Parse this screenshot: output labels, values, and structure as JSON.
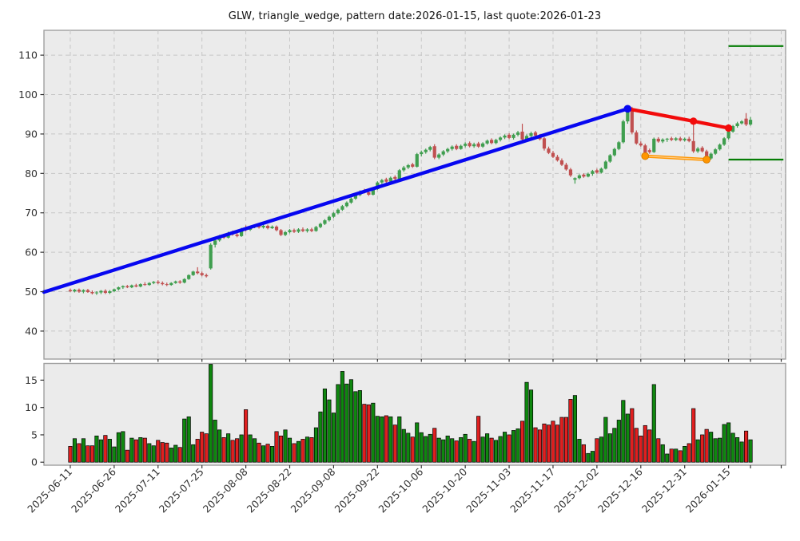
{
  "title": "GLW, triangle_wedge, pattern date:2026-01-15, last quote:2026-01-23",
  "chart_data": {
    "type": "candlestick",
    "symbol": "GLW",
    "pattern_name": "triangle_wedge",
    "pattern_date": "2026-01-15",
    "last_quote_date": "2026-01-23",
    "price_axis": {
      "ticks": [
        40,
        50,
        60,
        70,
        80,
        90,
        100,
        110
      ],
      "lim": [
        32.9,
        116.3
      ]
    },
    "volume_axis": {
      "ticks": [
        0,
        5,
        10,
        15
      ],
      "lim": [
        -0.55,
        18.05
      ]
    },
    "x_axis": {
      "lim": [
        -6,
        163
      ],
      "ticks": [
        {
          "i": 0,
          "label": "2025-06-11"
        },
        {
          "i": 10,
          "label": "2025-06-26"
        },
        {
          "i": 20,
          "label": "2025-07-11"
        },
        {
          "i": 30,
          "label": "2025-07-25"
        },
        {
          "i": 40,
          "label": "2025-08-08"
        },
        {
          "i": 50,
          "label": "2025-08-22"
        },
        {
          "i": 60,
          "label": "2025-09-08"
        },
        {
          "i": 70,
          "label": "2025-09-22"
        },
        {
          "i": 80,
          "label": "2025-10-06"
        },
        {
          "i": 90,
          "label": "2025-10-20"
        },
        {
          "i": 100,
          "label": "2025-11-03"
        },
        {
          "i": 110,
          "label": "2025-11-17"
        },
        {
          "i": 120,
          "label": "2025-12-02"
        },
        {
          "i": 130,
          "label": "2025-12-16"
        },
        {
          "i": 140,
          "label": "2025-12-31"
        },
        {
          "i": 150,
          "label": "2026-01-15"
        }
      ],
      "minor_unlabeled_ticks": [
        155,
        162
      ]
    },
    "candle_fields": [
      "open",
      "high",
      "low",
      "close",
      "volume"
    ],
    "candles": [
      [
        50.4,
        50.8,
        49.9,
        50.1,
        2.9
      ],
      [
        50.1,
        50.7,
        49.8,
        50.5,
        4.3
      ],
      [
        50.5,
        50.8,
        49.7,
        50.0,
        3.4
      ],
      [
        50.0,
        50.6,
        49.6,
        50.4,
        4.3
      ],
      [
        50.4,
        50.7,
        49.7,
        49.9,
        3.0
      ],
      [
        49.9,
        50.3,
        49.3,
        49.6,
        3.0
      ],
      [
        49.6,
        50.1,
        49.2,
        49.8,
        4.8
      ],
      [
        49.8,
        50.4,
        49.4,
        50.2,
        4.1
      ],
      [
        50.2,
        50.6,
        49.4,
        49.7,
        4.9
      ],
      [
        49.7,
        50.4,
        49.4,
        50.1,
        4.2
      ],
      [
        50.1,
        50.8,
        49.9,
        50.6,
        2.8
      ],
      [
        50.6,
        51.3,
        50.3,
        51.1,
        5.4
      ],
      [
        51.1,
        51.6,
        50.7,
        51.4,
        5.6
      ],
      [
        51.4,
        51.7,
        50.9,
        51.1,
        2.2
      ],
      [
        51.1,
        51.8,
        50.9,
        51.6,
        4.4
      ],
      [
        51.6,
        52.0,
        51.1,
        51.3,
        4.1
      ],
      [
        51.3,
        52.1,
        51.1,
        51.9,
        4.5
      ],
      [
        51.9,
        52.4,
        51.5,
        51.7,
        4.4
      ],
      [
        51.7,
        52.4,
        51.5,
        52.2,
        3.4
      ],
      [
        52.2,
        52.7,
        51.9,
        52.5,
        3.0
      ],
      [
        52.5,
        52.9,
        51.9,
        52.2,
        4.0
      ],
      [
        52.2,
        52.6,
        51.6,
        51.9,
        3.6
      ],
      [
        51.9,
        52.3,
        51.4,
        51.7,
        3.5
      ],
      [
        51.7,
        52.4,
        51.5,
        52.2,
        2.6
      ],
      [
        52.2,
        52.8,
        52.0,
        52.6,
        3.1
      ],
      [
        52.6,
        52.9,
        52.0,
        52.3,
        2.7
      ],
      [
        52.3,
        53.4,
        52.1,
        53.2,
        7.9
      ],
      [
        53.2,
        54.4,
        53.0,
        54.2,
        8.3
      ],
      [
        54.2,
        55.3,
        54.0,
        55.1,
        3.2
      ],
      [
        55.1,
        56.2,
        54.4,
        54.7,
        4.2
      ],
      [
        54.7,
        55.1,
        53.9,
        54.2,
        5.5
      ],
      [
        54.2,
        54.6,
        53.6,
        53.9,
        5.2
      ],
      [
        55.9,
        62.3,
        55.6,
        61.9,
        17.9
      ],
      [
        61.9,
        63.4,
        61.2,
        63.0,
        7.7
      ],
      [
        63.0,
        64.4,
        62.7,
        64.1,
        5.9
      ],
      [
        64.3,
        64.7,
        63.4,
        63.7,
        4.5
      ],
      [
        63.7,
        65.2,
        63.5,
        64.9,
        5.2
      ],
      [
        65.1,
        65.5,
        64.2,
        64.5,
        4.0
      ],
      [
        64.5,
        65.0,
        63.8,
        64.1,
        4.3
      ],
      [
        64.1,
        66.2,
        63.9,
        65.9,
        5.0
      ],
      [
        66.1,
        66.8,
        65.3,
        65.7,
        9.6
      ],
      [
        65.7,
        66.7,
        65.4,
        66.4,
        5.0
      ],
      [
        66.4,
        67.1,
        66.1,
        66.8,
        4.3
      ],
      [
        66.8,
        67.2,
        66.0,
        66.3,
        3.5
      ],
      [
        66.3,
        67.0,
        66.0,
        66.7,
        3.0
      ],
      [
        66.7,
        67.0,
        65.8,
        66.1,
        3.3
      ],
      [
        66.1,
        66.8,
        65.9,
        66.5,
        2.9
      ],
      [
        66.5,
        66.8,
        65.3,
        65.6,
        5.6
      ],
      [
        65.6,
        65.9,
        64.1,
        64.4,
        4.8
      ],
      [
        64.4,
        65.4,
        64.1,
        65.1,
        5.9
      ],
      [
        65.1,
        65.9,
        64.8,
        65.6,
        4.4
      ],
      [
        65.6,
        66.0,
        64.9,
        65.2,
        3.4
      ],
      [
        65.2,
        66.1,
        64.9,
        65.8,
        3.8
      ],
      [
        65.8,
        66.3,
        65.1,
        65.4,
        4.2
      ],
      [
        65.4,
        66.1,
        65.0,
        65.8,
        4.6
      ],
      [
        65.8,
        66.2,
        65.1,
        65.4,
        4.5
      ],
      [
        65.4,
        66.7,
        65.2,
        66.4,
        6.3
      ],
      [
        66.4,
        67.5,
        66.1,
        67.2,
        9.2
      ],
      [
        67.2,
        68.4,
        66.9,
        68.1,
        13.4
      ],
      [
        68.1,
        69.3,
        67.8,
        69.0,
        11.4
      ],
      [
        69.0,
        70.2,
        68.7,
        69.9,
        9.0
      ],
      [
        69.9,
        71.1,
        69.6,
        70.8,
        14.2
      ],
      [
        70.8,
        72.0,
        70.5,
        71.7,
        16.6
      ],
      [
        71.7,
        72.9,
        71.4,
        72.6,
        14.3
      ],
      [
        72.6,
        73.9,
        72.3,
        73.6,
        15.1
      ],
      [
        73.6,
        74.8,
        73.3,
        74.5,
        12.9
      ],
      [
        74.5,
        75.7,
        74.2,
        75.4,
        13.1
      ],
      [
        75.6,
        76.1,
        74.9,
        75.2,
        10.6
      ],
      [
        75.2,
        75.7,
        74.3,
        74.6,
        10.5
      ],
      [
        74.6,
        76.3,
        74.4,
        76.0,
        10.8
      ],
      [
        76.0,
        78.0,
        75.8,
        77.7,
        8.4
      ],
      [
        77.7,
        78.6,
        77.3,
        78.3,
        8.3
      ],
      [
        78.5,
        78.9,
        77.6,
        77.9,
        8.5
      ],
      [
        77.9,
        79.2,
        77.7,
        78.9,
        8.3
      ],
      [
        79.1,
        79.5,
        78.3,
        78.6,
        6.8
      ],
      [
        78.6,
        81.1,
        78.4,
        80.8,
        8.3
      ],
      [
        80.8,
        81.9,
        80.4,
        81.5,
        6.0
      ],
      [
        81.5,
        82.4,
        81.1,
        82.1,
        5.3
      ],
      [
        82.3,
        82.7,
        81.4,
        81.7,
        4.6
      ],
      [
        81.7,
        85.2,
        81.5,
        84.9,
        7.2
      ],
      [
        84.9,
        85.8,
        84.3,
        85.4,
        5.4
      ],
      [
        85.4,
        86.3,
        85.0,
        86.0,
        4.7
      ],
      [
        86.0,
        87.0,
        85.6,
        86.7,
        5.1
      ],
      [
        86.9,
        87.4,
        83.6,
        84.0,
        6.2
      ],
      [
        84.0,
        85.1,
        83.6,
        84.8,
        4.4
      ],
      [
        84.8,
        85.9,
        84.4,
        85.6,
        4.1
      ],
      [
        85.6,
        86.5,
        85.2,
        86.2,
        4.8
      ],
      [
        86.2,
        87.1,
        85.8,
        86.8,
        4.3
      ],
      [
        87.0,
        87.4,
        85.9,
        86.2,
        3.9
      ],
      [
        86.2,
        87.3,
        86.0,
        87.0,
        4.5
      ],
      [
        87.0,
        87.9,
        86.6,
        87.5,
        5.1
      ],
      [
        87.7,
        88.1,
        86.6,
        86.9,
        4.2
      ],
      [
        86.9,
        87.8,
        86.5,
        87.4,
        3.8
      ],
      [
        87.6,
        88.0,
        86.5,
        86.8,
        8.4
      ],
      [
        86.8,
        87.9,
        86.5,
        87.6,
        4.6
      ],
      [
        87.6,
        88.6,
        87.3,
        88.3,
        5.2
      ],
      [
        88.5,
        88.9,
        87.4,
        87.7,
        4.4
      ],
      [
        87.7,
        88.8,
        87.4,
        88.5,
        4.0
      ],
      [
        88.5,
        89.4,
        88.1,
        89.1,
        4.7
      ],
      [
        89.1,
        89.9,
        88.7,
        89.6,
        5.5
      ],
      [
        89.8,
        90.2,
        88.7,
        89.0,
        5.0
      ],
      [
        89.0,
        90.1,
        88.6,
        89.8,
        5.8
      ],
      [
        89.8,
        90.8,
        89.4,
        90.4,
        6.1
      ],
      [
        90.6,
        92.6,
        88.3,
        88.6,
        7.5
      ],
      [
        88.6,
        89.9,
        88.3,
        89.5,
        14.6
      ],
      [
        89.5,
        90.6,
        89.1,
        90.2,
        13.2
      ],
      [
        90.4,
        90.8,
        89.3,
        89.6,
        6.3
      ],
      [
        89.6,
        90.0,
        88.4,
        88.7,
        5.9
      ],
      [
        88.9,
        89.2,
        85.8,
        86.3,
        7.0
      ],
      [
        86.3,
        86.8,
        84.9,
        85.2,
        6.8
      ],
      [
        85.2,
        85.7,
        83.9,
        84.2,
        7.5
      ],
      [
        84.2,
        84.7,
        83.0,
        83.3,
        6.8
      ],
      [
        83.3,
        83.8,
        81.9,
        82.2,
        8.2
      ],
      [
        82.2,
        82.7,
        80.7,
        81.0,
        8.2
      ],
      [
        81.0,
        81.4,
        79.1,
        79.5,
        11.5
      ],
      [
        78.4,
        79.0,
        77.4,
        78.8,
        12.2
      ],
      [
        78.8,
        79.8,
        78.5,
        79.5,
        4.2
      ],
      [
        79.7,
        80.0,
        78.9,
        79.2,
        3.2
      ],
      [
        79.2,
        80.2,
        79.0,
        79.9,
        1.6
      ],
      [
        79.9,
        80.9,
        79.4,
        80.6,
        2.0
      ],
      [
        80.8,
        81.2,
        79.9,
        80.2,
        4.3
      ],
      [
        80.2,
        81.5,
        80.0,
        81.2,
        4.6
      ],
      [
        81.2,
        83.3,
        81.0,
        83.0,
        8.2
      ],
      [
        83.0,
        84.9,
        82.7,
        84.6,
        5.2
      ],
      [
        84.6,
        86.5,
        84.3,
        86.2,
        6.2
      ],
      [
        86.2,
        88.2,
        85.9,
        87.9,
        7.7
      ],
      [
        87.9,
        93.6,
        87.6,
        93.2,
        11.3
      ],
      [
        93.2,
        96.8,
        92.6,
        96.3,
        8.8
      ],
      [
        96.3,
        96.9,
        89.9,
        90.4,
        9.8
      ],
      [
        90.4,
        90.9,
        87.3,
        87.6,
        6.2
      ],
      [
        87.6,
        88.1,
        86.8,
        87.1,
        4.8
      ],
      [
        87.1,
        87.5,
        84.4,
        85.3,
        6.7
      ],
      [
        85.9,
        86.3,
        85.0,
        85.4,
        5.9
      ],
      [
        85.4,
        89.1,
        85.2,
        88.8,
        14.2
      ],
      [
        88.8,
        89.2,
        87.8,
        88.1,
        4.3
      ],
      [
        88.1,
        88.9,
        87.7,
        88.6,
        3.2
      ],
      [
        88.6,
        89.0,
        88.0,
        88.8,
        1.5
      ],
      [
        88.9,
        89.3,
        88.2,
        88.5,
        2.4
      ],
      [
        88.5,
        89.2,
        88.2,
        88.9,
        2.4
      ],
      [
        88.9,
        89.3,
        88.1,
        88.4,
        2.1
      ],
      [
        88.4,
        89.1,
        88.1,
        88.8,
        2.9
      ],
      [
        88.8,
        89.3,
        87.9,
        88.2,
        3.4
      ],
      [
        88.2,
        93.3,
        85.2,
        85.6,
        9.8
      ],
      [
        85.6,
        86.7,
        85.2,
        86.3,
        4.1
      ],
      [
        86.5,
        86.9,
        85.3,
        85.6,
        5.0
      ],
      [
        85.6,
        86.0,
        83.4,
        83.8,
        6.0
      ],
      [
        83.8,
        85.3,
        83.5,
        85.0,
        5.5
      ],
      [
        85.0,
        86.4,
        84.7,
        86.1,
        4.3
      ],
      [
        86.1,
        87.6,
        85.8,
        87.3,
        4.4
      ],
      [
        87.3,
        89.2,
        87.0,
        88.9,
        6.9
      ],
      [
        88.9,
        90.9,
        88.6,
        90.6,
        7.2
      ],
      [
        90.6,
        92.3,
        90.3,
        92.0,
        5.3
      ],
      [
        92.0,
        93.1,
        91.6,
        92.7,
        4.5
      ],
      [
        92.7,
        93.5,
        92.4,
        93.2,
        3.7
      ],
      [
        93.9,
        95.3,
        92.0,
        92.4,
        5.7
      ],
      [
        92.4,
        94.3,
        92.1,
        93.6,
        4.1
      ]
    ],
    "overlays": {
      "trendline": {
        "name": "blue-trendline",
        "points": [
          [
            -6,
            49.9
          ],
          [
            127,
            96.4
          ]
        ],
        "marker_points": [
          [
            127,
            96.4
          ]
        ]
      },
      "breakout_line": {
        "name": "red-breakout-line",
        "points": [
          [
            127,
            96.4
          ],
          [
            142,
            93.25
          ],
          [
            150,
            91.5
          ]
        ],
        "marker_points": [
          [
            142,
            93.25
          ],
          [
            150,
            91.5
          ]
        ]
      },
      "wedge_support_line": {
        "name": "orange-wedge-line",
        "points": [
          [
            131,
            84.4
          ],
          [
            145,
            83.5
          ]
        ],
        "marker_points": [
          [
            131,
            84.4
          ],
          [
            145,
            83.5
          ]
        ]
      },
      "level_lines": [
        {
          "name": "green-target-level",
          "value": 112.3,
          "from_i": 150,
          "to_i": 162.5
        },
        {
          "name": "green-stop-level",
          "value": 83.5,
          "from_i": 150,
          "to_i": 162.5
        }
      ]
    },
    "colors": {
      "up": "#3f9e4f",
      "down": "#c05050",
      "vol_up": "#0f870f",
      "vol_down": "#e01f1f",
      "bar_edge": "#000000",
      "trend_blue": "#0707f0",
      "breakout_red": "#f20b0b",
      "wedge_orange": "#ff9500",
      "wedge_orange_hi": "#ffcf8a",
      "marker_edge_orange": "#d97e00",
      "level_green": "#067d06",
      "panel_bg": "#ebebeb",
      "grid": "#c6c6c6",
      "spine": "#a0a0a0",
      "text": "#333333"
    }
  }
}
